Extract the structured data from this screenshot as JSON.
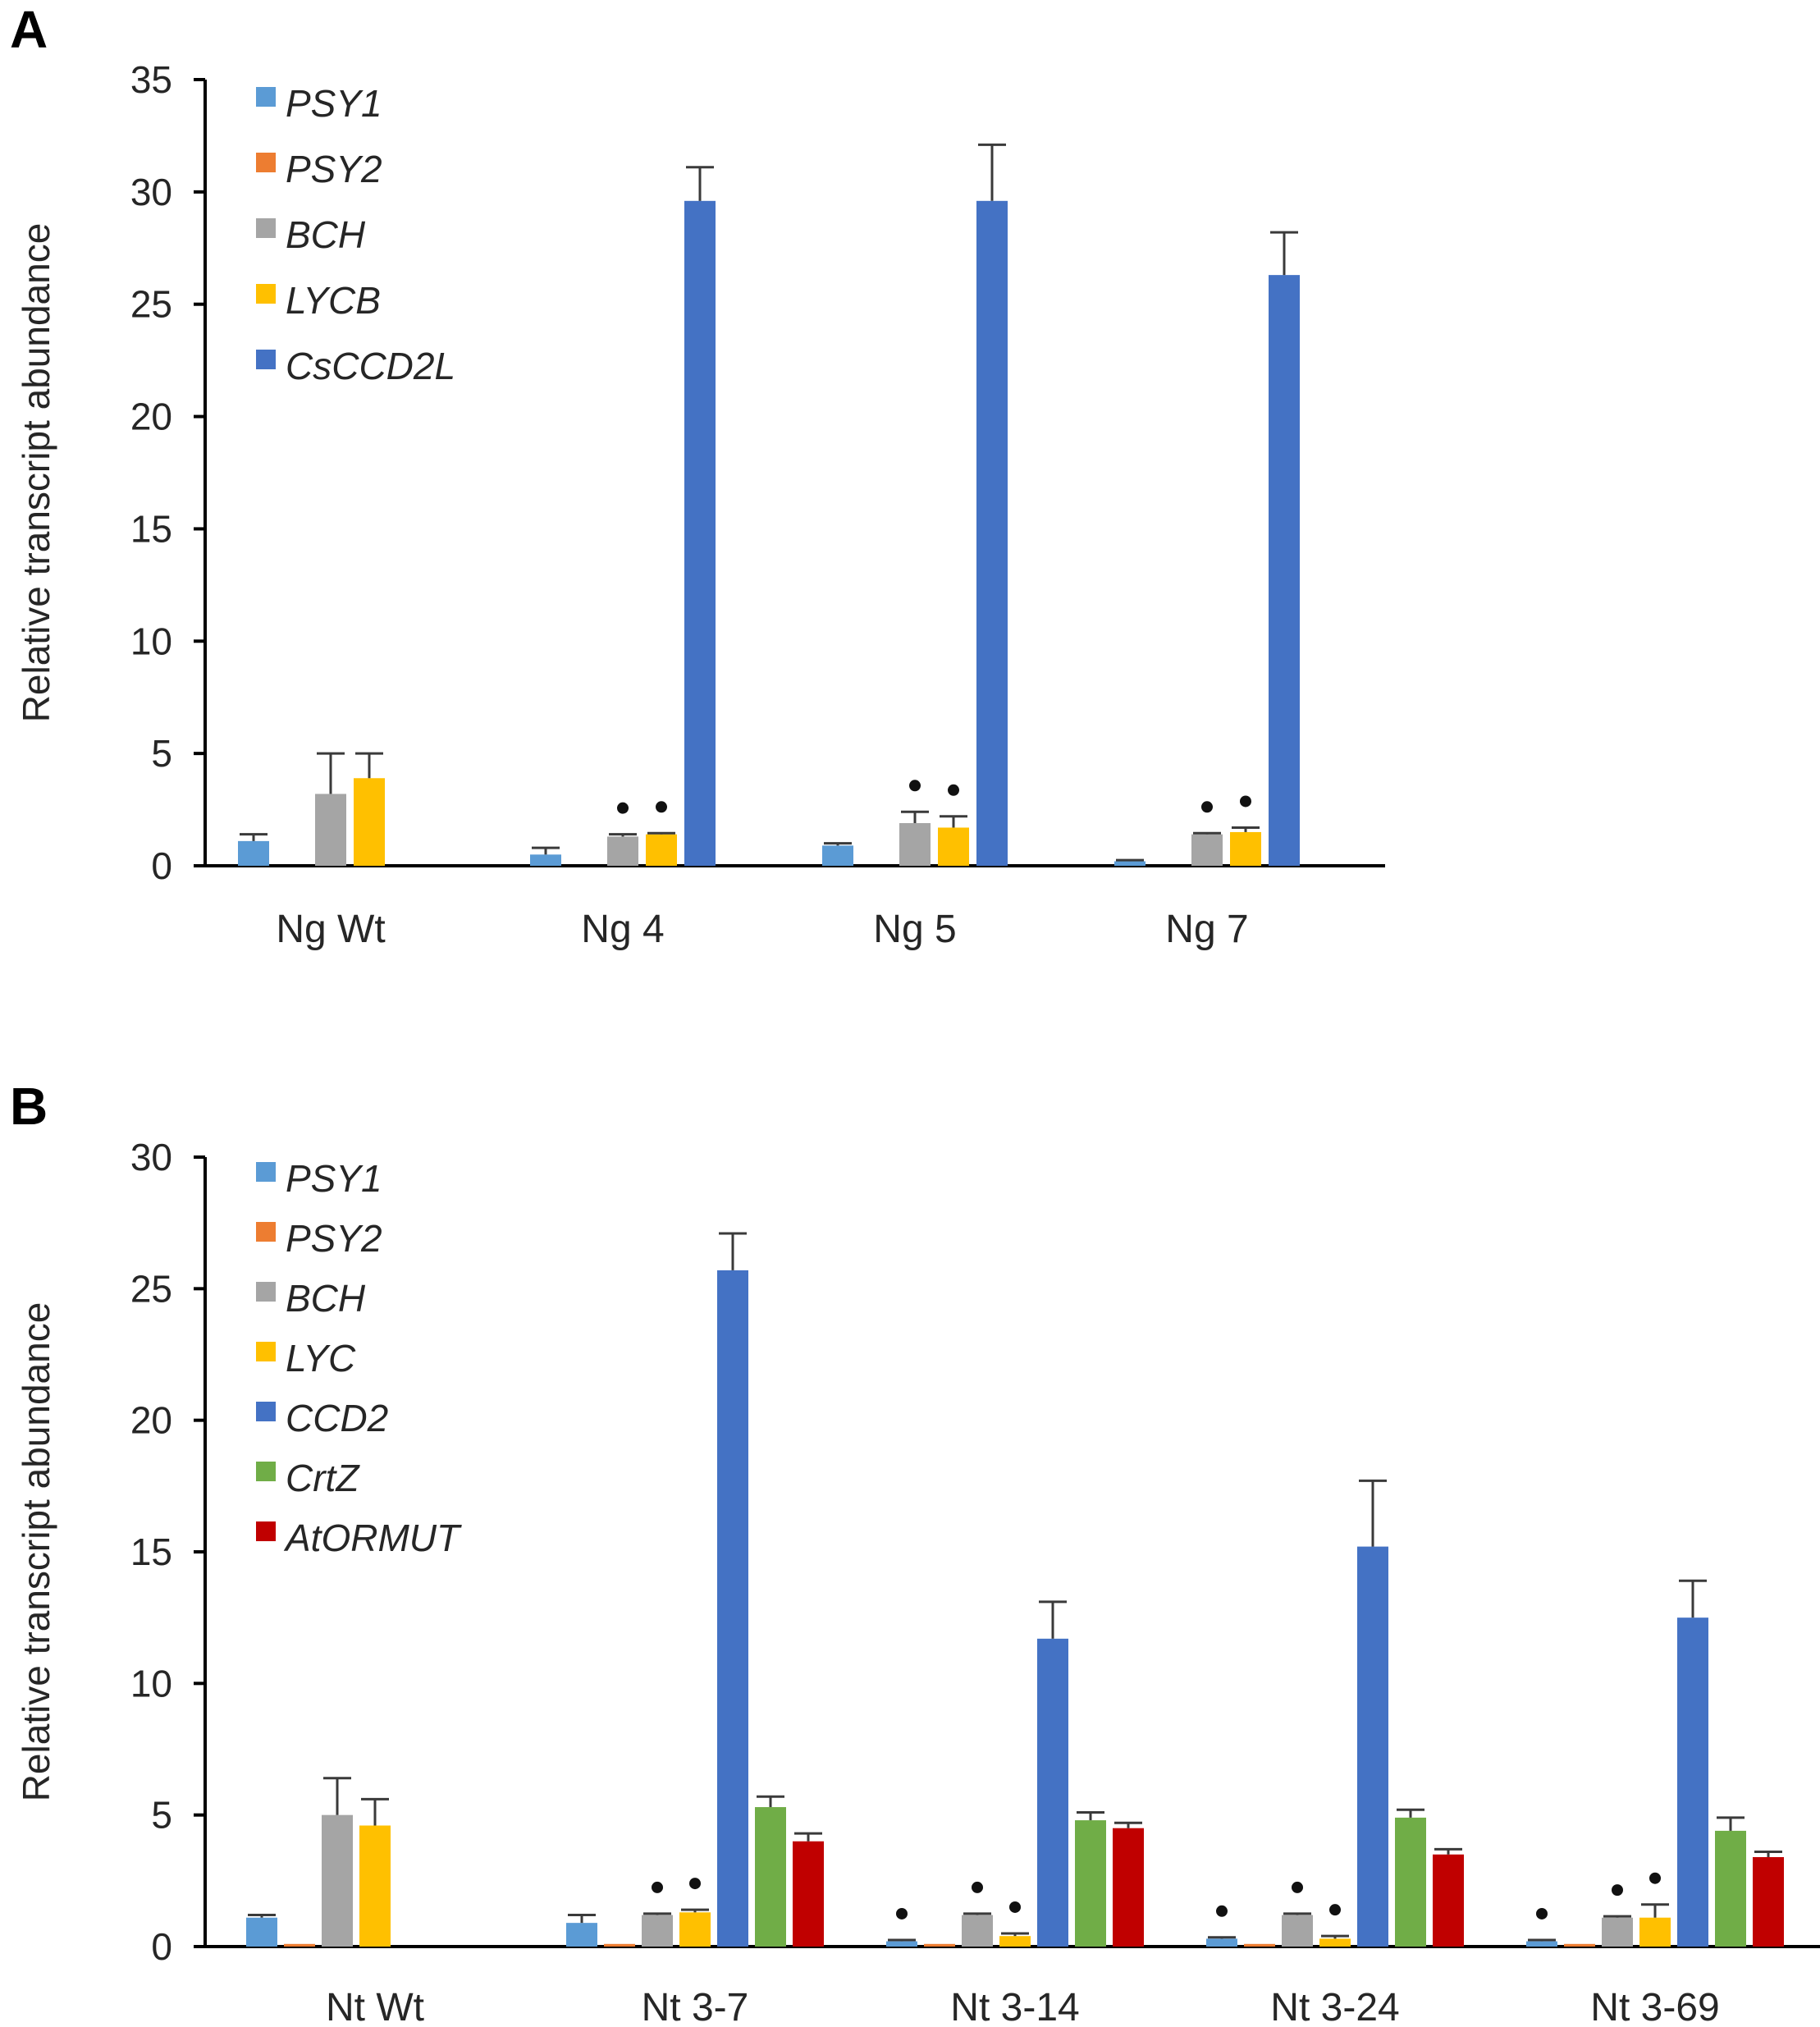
{
  "colors": {
    "PSY1": "#5b9bd5",
    "PSY2": "#ed7d31",
    "BCH": "#a5a5a5",
    "LYC": "#ffc000",
    "CCD2": "#4472c4",
    "CrtZ": "#70ad47",
    "AtORMUT": "#c00000"
  },
  "chart_data": [
    {
      "panel": "A",
      "type": "bar",
      "ylabel": "Relative  transcript abundance",
      "ylim": [
        0,
        35
      ],
      "yticks": [
        0,
        5,
        10,
        15,
        20,
        25,
        30,
        35
      ],
      "categories": [
        "Ng Wt",
        "Ng 4",
        "Ng 5",
        "Ng 7"
      ],
      "legend_position": "top-left",
      "series": [
        {
          "name": "PSY1",
          "color_key": "PSY1",
          "values": [
            1.1,
            0.5,
            0.9,
            0.2
          ],
          "errors": [
            0.3,
            0.3,
            0.1,
            0.05
          ],
          "marked": [
            false,
            false,
            false,
            false
          ]
        },
        {
          "name": "PSY2",
          "color_key": "PSY2",
          "values": [
            0.0,
            0.0,
            0.0,
            0.0
          ],
          "errors": [
            0,
            0,
            0,
            0
          ],
          "marked": [
            false,
            false,
            false,
            false
          ]
        },
        {
          "name": "BCH",
          "color_key": "BCH",
          "values": [
            3.2,
            1.3,
            1.9,
            1.4
          ],
          "errors": [
            1.8,
            0.1,
            0.5,
            0.05
          ],
          "marked": [
            false,
            true,
            true,
            true
          ]
        },
        {
          "name": "LYCB",
          "color_key": "LYC",
          "values": [
            3.9,
            1.4,
            1.7,
            1.5
          ],
          "errors": [
            1.1,
            0.05,
            0.5,
            0.2
          ],
          "marked": [
            false,
            true,
            true,
            true
          ]
        },
        {
          "name": "CsCCD2L",
          "color_key": "CCD2",
          "values": [
            0.0,
            29.6,
            29.6,
            26.3
          ],
          "errors": [
            0,
            1.5,
            2.5,
            1.9
          ],
          "marked": [
            false,
            false,
            false,
            false
          ]
        }
      ]
    },
    {
      "panel": "B",
      "type": "bar",
      "ylabel": "Relative  transcript abundance",
      "ylim": [
        0,
        30
      ],
      "yticks": [
        0,
        5,
        10,
        15,
        20,
        25,
        30
      ],
      "categories": [
        "Nt Wt",
        "Nt 3-7",
        "Nt 3-14",
        "Nt 3-24",
        "Nt 3-69"
      ],
      "legend_position": "top-left",
      "series": [
        {
          "name": "PSY1",
          "color_key": "PSY1",
          "values": [
            1.1,
            0.9,
            0.2,
            0.3,
            0.2
          ],
          "errors": [
            0.1,
            0.3,
            0.05,
            0.05,
            0.05
          ],
          "marked": [
            false,
            false,
            true,
            true,
            true
          ]
        },
        {
          "name": "PSY2",
          "color_key": "PSY2",
          "values": [
            0.1,
            0.1,
            0.1,
            0.1,
            0.1
          ],
          "errors": [
            0,
            0,
            0,
            0,
            0
          ],
          "marked": [
            false,
            false,
            false,
            false,
            false
          ]
        },
        {
          "name": "BCH",
          "color_key": "BCH",
          "values": [
            5.0,
            1.2,
            1.2,
            1.2,
            1.1
          ],
          "errors": [
            1.4,
            0.05,
            0.05,
            0.05,
            0.05
          ],
          "marked": [
            false,
            true,
            true,
            true,
            true
          ]
        },
        {
          "name": "LYC",
          "color_key": "LYC",
          "values": [
            4.6,
            1.3,
            0.4,
            0.3,
            1.1
          ],
          "errors": [
            1.0,
            0.1,
            0.1,
            0.1,
            0.5
          ],
          "marked": [
            false,
            true,
            true,
            true,
            true
          ]
        },
        {
          "name": "CCD2",
          "color_key": "CCD2",
          "values": [
            0.0,
            25.7,
            11.7,
            15.2,
            12.5
          ],
          "errors": [
            0,
            1.4,
            1.4,
            2.5,
            1.4
          ],
          "marked": [
            false,
            false,
            false,
            false,
            false
          ]
        },
        {
          "name": "CrtZ",
          "color_key": "CrtZ",
          "values": [
            0.0,
            5.3,
            4.8,
            4.9,
            4.4
          ],
          "errors": [
            0,
            0.4,
            0.3,
            0.3,
            0.5
          ],
          "marked": [
            false,
            false,
            false,
            false,
            false
          ]
        },
        {
          "name": "AtORMUT",
          "color_key": "AtORMUT",
          "values": [
            0.0,
            4.0,
            4.5,
            3.5,
            3.4
          ],
          "errors": [
            0,
            0.3,
            0.2,
            0.2,
            0.2
          ],
          "marked": [
            false,
            false,
            false,
            false,
            false
          ]
        }
      ]
    }
  ]
}
